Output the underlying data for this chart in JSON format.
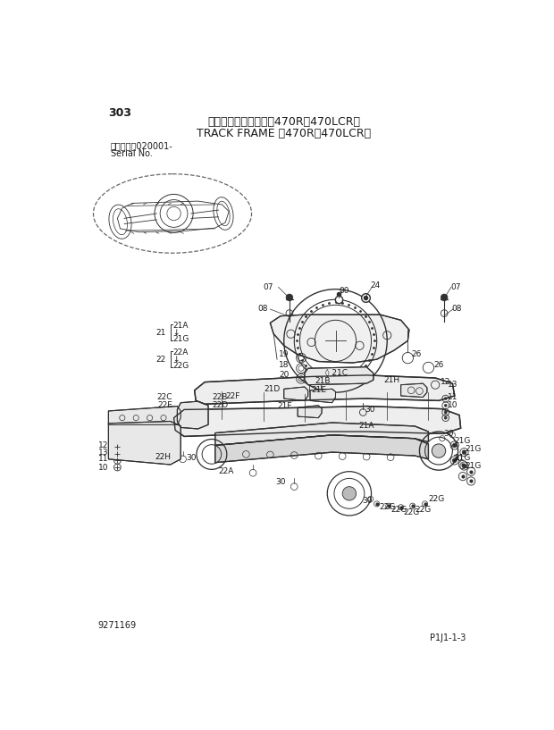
{
  "page_number": "303",
  "title_japanese": "トラックフレーム　＜470R，470LCR＞",
  "title_english": "TRACK FRAME ＜470R，470LCR＞",
  "serial_label": "適用号機　020001-",
  "serial_sub": "Serial No.",
  "doc_number": "9271169",
  "page_ref": "P1J1-1-3",
  "bg_color": "#ffffff",
  "text_color": "#1a1a1a",
  "line_color": "#303030"
}
